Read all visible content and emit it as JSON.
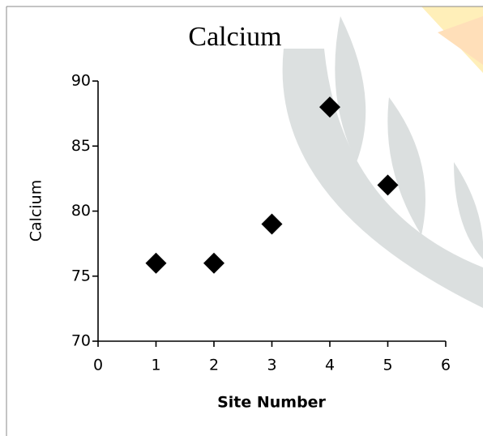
{
  "chart_data": {
    "type": "scatter",
    "title": "Calcium",
    "xlabel": "Site Number",
    "ylabel": "Calcium",
    "x": [
      1,
      2,
      3,
      4,
      5
    ],
    "values": [
      76,
      76,
      79,
      88,
      82
    ],
    "color": "#000000",
    "xlim": [
      0,
      6
    ],
    "xticks": [
      0,
      1,
      2,
      3,
      4,
      5,
      6
    ],
    "ylim": [
      70,
      90
    ],
    "yticks": [
      70,
      75,
      80,
      85,
      90
    ]
  }
}
